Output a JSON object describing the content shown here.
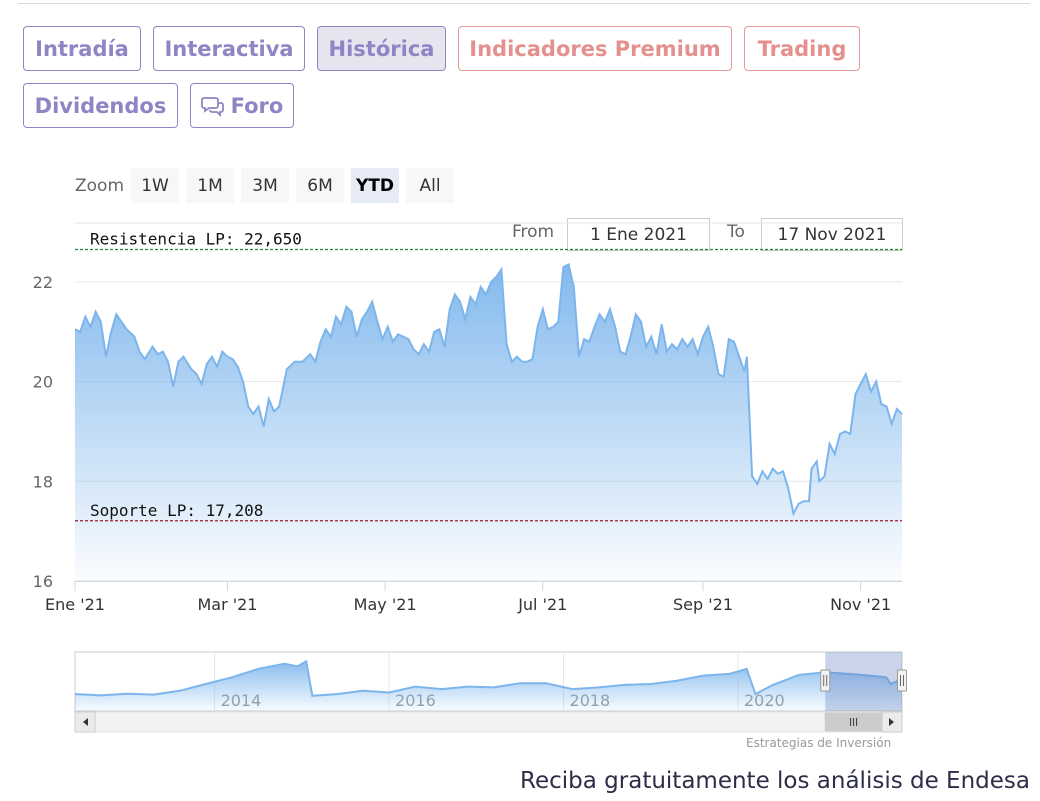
{
  "tabs": [
    {
      "label": "Intradía",
      "style": "normal",
      "icon": ""
    },
    {
      "label": "Interactiva",
      "style": "normal",
      "icon": ""
    },
    {
      "label": "Histórica",
      "style": "active",
      "icon": ""
    },
    {
      "label": "Indicadores Premium",
      "style": "premium",
      "icon": ""
    },
    {
      "label": "Trading",
      "style": "premium",
      "icon": ""
    },
    {
      "label": "Dividendos",
      "style": "normal",
      "icon": ""
    },
    {
      "label": "Foro",
      "style": "normal",
      "icon": "speech-bubbles-icon"
    }
  ],
  "range_selector": {
    "zoom_label": "Zoom",
    "buttons": [
      "1W",
      "1M",
      "3M",
      "6M",
      "YTD",
      "All"
    ],
    "selected": "YTD",
    "from_label": "From",
    "from_value": "1 Ene 2021",
    "to_label": "To",
    "to_value": "17 Nov 2021"
  },
  "chart_data": {
    "type": "area",
    "title": "",
    "xlabel": "",
    "ylabel": "",
    "ylim": [
      16,
      22.6
    ],
    "y_ticks": [
      16,
      18,
      20,
      22
    ],
    "x_ticks": [
      {
        "date": "2021-01-01",
        "label": "Ene '21"
      },
      {
        "date": "2021-03-01",
        "label": "Mar '21"
      },
      {
        "date": "2021-05-01",
        "label": "May '21"
      },
      {
        "date": "2021-07-01",
        "label": "Jul '21"
      },
      {
        "date": "2021-09-01",
        "label": "Sep '21"
      },
      {
        "date": "2021-11-01",
        "label": "Nov '21"
      }
    ],
    "x_range": [
      "2021-01-01",
      "2021-11-17"
    ],
    "grid": true,
    "series": [
      {
        "color": "#7cb5ec",
        "points": [
          [
            "2021-01-01",
            21.05
          ],
          [
            "2021-01-03",
            21.0
          ],
          [
            "2021-01-05",
            21.3
          ],
          [
            "2021-01-07",
            21.1
          ],
          [
            "2021-01-09",
            21.4
          ],
          [
            "2021-01-11",
            21.2
          ],
          [
            "2021-01-13",
            20.5
          ],
          [
            "2021-01-15",
            21.0
          ],
          [
            "2021-01-17",
            21.35
          ],
          [
            "2021-01-19",
            21.2
          ],
          [
            "2021-01-21",
            21.05
          ],
          [
            "2021-01-24",
            20.9
          ],
          [
            "2021-01-26",
            20.6
          ],
          [
            "2021-01-28",
            20.45
          ],
          [
            "2021-01-31",
            20.7
          ],
          [
            "2021-02-02",
            20.55
          ],
          [
            "2021-02-04",
            20.6
          ],
          [
            "2021-02-06",
            20.4
          ],
          [
            "2021-02-08",
            19.9
          ],
          [
            "2021-02-10",
            20.4
          ],
          [
            "2021-02-12",
            20.5
          ],
          [
            "2021-02-15",
            20.25
          ],
          [
            "2021-02-17",
            20.15
          ],
          [
            "2021-02-19",
            19.95
          ],
          [
            "2021-02-21",
            20.35
          ],
          [
            "2021-02-23",
            20.5
          ],
          [
            "2021-02-25",
            20.3
          ],
          [
            "2021-02-27",
            20.6
          ],
          [
            "2021-03-01",
            20.5
          ],
          [
            "2021-03-03",
            20.45
          ],
          [
            "2021-03-05",
            20.3
          ],
          [
            "2021-03-07",
            20.0
          ],
          [
            "2021-03-09",
            19.5
          ],
          [
            "2021-03-11",
            19.35
          ],
          [
            "2021-03-13",
            19.5
          ],
          [
            "2021-03-15",
            19.1
          ],
          [
            "2021-03-17",
            19.65
          ],
          [
            "2021-03-19",
            19.4
          ],
          [
            "2021-03-21",
            19.5
          ],
          [
            "2021-03-24",
            20.25
          ],
          [
            "2021-03-27",
            20.4
          ],
          [
            "2021-03-30",
            20.4
          ],
          [
            "2021-04-02",
            20.55
          ],
          [
            "2021-04-04",
            20.4
          ],
          [
            "2021-04-06",
            20.8
          ],
          [
            "2021-04-08",
            21.05
          ],
          [
            "2021-04-10",
            20.9
          ],
          [
            "2021-04-12",
            21.3
          ],
          [
            "2021-04-14",
            21.15
          ],
          [
            "2021-04-16",
            21.5
          ],
          [
            "2021-04-18",
            21.4
          ],
          [
            "2021-04-20",
            20.9
          ],
          [
            "2021-04-22",
            21.25
          ],
          [
            "2021-04-24",
            21.4
          ],
          [
            "2021-04-26",
            21.6
          ],
          [
            "2021-04-28",
            21.2
          ],
          [
            "2021-04-30",
            20.85
          ],
          [
            "2021-05-02",
            21.1
          ],
          [
            "2021-05-04",
            20.8
          ],
          [
            "2021-05-06",
            20.95
          ],
          [
            "2021-05-08",
            20.9
          ],
          [
            "2021-05-10",
            20.85
          ],
          [
            "2021-05-12",
            20.65
          ],
          [
            "2021-05-14",
            20.55
          ],
          [
            "2021-05-16",
            20.75
          ],
          [
            "2021-05-18",
            20.6
          ],
          [
            "2021-05-20",
            21.0
          ],
          [
            "2021-05-22",
            21.05
          ],
          [
            "2021-05-24",
            20.7
          ],
          [
            "2021-05-26",
            21.45
          ],
          [
            "2021-05-28",
            21.75
          ],
          [
            "2021-05-30",
            21.6
          ],
          [
            "2021-06-01",
            21.25
          ],
          [
            "2021-06-03",
            21.7
          ],
          [
            "2021-06-05",
            21.55
          ],
          [
            "2021-06-07",
            21.9
          ],
          [
            "2021-06-09",
            21.75
          ],
          [
            "2021-06-11",
            22.0
          ],
          [
            "2021-06-13",
            22.1
          ],
          [
            "2021-06-15",
            22.25
          ],
          [
            "2021-06-17",
            20.75
          ],
          [
            "2021-06-19",
            20.4
          ],
          [
            "2021-06-21",
            20.5
          ],
          [
            "2021-06-23",
            20.4
          ],
          [
            "2021-06-25",
            20.4
          ],
          [
            "2021-06-27",
            20.45
          ],
          [
            "2021-06-29",
            21.1
          ],
          [
            "2021-07-01",
            21.45
          ],
          [
            "2021-07-03",
            21.05
          ],
          [
            "2021-07-05",
            21.1
          ],
          [
            "2021-07-07",
            21.2
          ],
          [
            "2021-07-09",
            22.3
          ],
          [
            "2021-07-11",
            22.35
          ],
          [
            "2021-07-13",
            21.9
          ],
          [
            "2021-07-15",
            20.5
          ],
          [
            "2021-07-17",
            20.85
          ],
          [
            "2021-07-19",
            20.8
          ],
          [
            "2021-07-21",
            21.1
          ],
          [
            "2021-07-23",
            21.35
          ],
          [
            "2021-07-25",
            21.2
          ],
          [
            "2021-07-27",
            21.45
          ],
          [
            "2021-07-29",
            21.1
          ],
          [
            "2021-07-31",
            20.6
          ],
          [
            "2021-08-02",
            20.55
          ],
          [
            "2021-08-04",
            20.9
          ],
          [
            "2021-08-06",
            21.35
          ],
          [
            "2021-08-08",
            21.2
          ],
          [
            "2021-08-10",
            20.7
          ],
          [
            "2021-08-12",
            20.9
          ],
          [
            "2021-08-14",
            20.55
          ],
          [
            "2021-08-16",
            21.15
          ],
          [
            "2021-08-18",
            20.6
          ],
          [
            "2021-08-20",
            20.75
          ],
          [
            "2021-08-22",
            20.65
          ],
          [
            "2021-08-24",
            20.85
          ],
          [
            "2021-08-26",
            20.7
          ],
          [
            "2021-08-28",
            20.85
          ],
          [
            "2021-08-30",
            20.55
          ],
          [
            "2021-09-01",
            20.9
          ],
          [
            "2021-09-03",
            21.1
          ],
          [
            "2021-09-05",
            20.7
          ],
          [
            "2021-09-07",
            20.15
          ],
          [
            "2021-09-09",
            20.1
          ],
          [
            "2021-09-11",
            20.85
          ],
          [
            "2021-09-13",
            20.8
          ],
          [
            "2021-09-15",
            20.5
          ],
          [
            "2021-09-17",
            20.2
          ],
          [
            "2021-09-18",
            20.5
          ],
          [
            "2021-09-20",
            18.1
          ],
          [
            "2021-09-22",
            17.95
          ],
          [
            "2021-09-24",
            18.2
          ],
          [
            "2021-09-26",
            18.05
          ],
          [
            "2021-09-28",
            18.25
          ],
          [
            "2021-09-30",
            18.15
          ],
          [
            "2021-10-02",
            18.2
          ],
          [
            "2021-10-04",
            17.85
          ],
          [
            "2021-10-06",
            17.35
          ],
          [
            "2021-10-08",
            17.55
          ],
          [
            "2021-10-10",
            17.6
          ],
          [
            "2021-10-12",
            17.6
          ],
          [
            "2021-10-13",
            18.25
          ],
          [
            "2021-10-15",
            18.4
          ],
          [
            "2021-10-16",
            18.0
          ],
          [
            "2021-10-18",
            18.1
          ],
          [
            "2021-10-20",
            18.75
          ],
          [
            "2021-10-22",
            18.55
          ],
          [
            "2021-10-24",
            18.95
          ],
          [
            "2021-10-26",
            19.0
          ],
          [
            "2021-10-28",
            18.95
          ],
          [
            "2021-10-30",
            19.75
          ],
          [
            "2021-11-01",
            19.95
          ],
          [
            "2021-11-03",
            20.15
          ],
          [
            "2021-11-05",
            19.8
          ],
          [
            "2021-11-07",
            20.0
          ],
          [
            "2021-11-09",
            19.55
          ],
          [
            "2021-11-11",
            19.5
          ],
          [
            "2021-11-13",
            19.15
          ],
          [
            "2021-11-15",
            19.45
          ],
          [
            "2021-11-17",
            19.35
          ]
        ]
      }
    ],
    "plot_lines": [
      {
        "label": "Resistencia LP: 22,650",
        "value": 22.65,
        "color": "#1e8a2e"
      },
      {
        "label": "Soporte LP: 17,208",
        "value": 17.208,
        "color": "#a0182a"
      }
    ]
  },
  "navigator": {
    "year_labels": [
      "2014",
      "2016",
      "2018",
      "2020"
    ],
    "range_start_year": 2012.4,
    "range_end_year": 2021.88,
    "window_start_year": 2021.0,
    "window_end_year": 2021.88,
    "series": [
      [
        2012.4,
        13.0
      ],
      [
        2012.7,
        12.85
      ],
      [
        2013.0,
        13.05
      ],
      [
        2013.3,
        12.95
      ],
      [
        2013.6,
        13.4
      ],
      [
        2013.9,
        14.2
      ],
      [
        2014.2,
        15.0
      ],
      [
        2014.5,
        16.0
      ],
      [
        2014.8,
        16.6
      ],
      [
        2014.95,
        16.3
      ],
      [
        2015.05,
        16.9
      ],
      [
        2015.12,
        12.8
      ],
      [
        2015.4,
        13.0
      ],
      [
        2015.7,
        13.4
      ],
      [
        2016.0,
        13.2
      ],
      [
        2016.3,
        13.9
      ],
      [
        2016.6,
        13.6
      ],
      [
        2016.9,
        13.9
      ],
      [
        2017.2,
        13.8
      ],
      [
        2017.5,
        14.3
      ],
      [
        2017.8,
        14.3
      ],
      [
        2018.1,
        13.6
      ],
      [
        2018.4,
        13.8
      ],
      [
        2018.7,
        14.1
      ],
      [
        2019.0,
        14.2
      ],
      [
        2019.3,
        14.6
      ],
      [
        2019.6,
        15.2
      ],
      [
        2019.9,
        15.4
      ],
      [
        2020.1,
        16.0
      ],
      [
        2020.2,
        13.0
      ],
      [
        2020.4,
        14.1
      ],
      [
        2020.7,
        15.3
      ],
      [
        2021.0,
        15.6
      ],
      [
        2021.4,
        15.3
      ],
      [
        2021.7,
        15.0
      ],
      [
        2021.75,
        14.2
      ],
      [
        2021.88,
        14.8
      ]
    ],
    "scrollbar_grip_icon": "grip-lines-icon",
    "left_arrow_icon": "arrow-left-icon",
    "right_arrow_icon": "arrow-right-icon"
  },
  "credit": "Estrategias de Inversión",
  "cta": "Reciba gratuitamente los análisis de Endesa",
  "colors": {
    "accent": "#8e85c4",
    "premium": "#e3908e",
    "series": "#7cb5ec"
  }
}
